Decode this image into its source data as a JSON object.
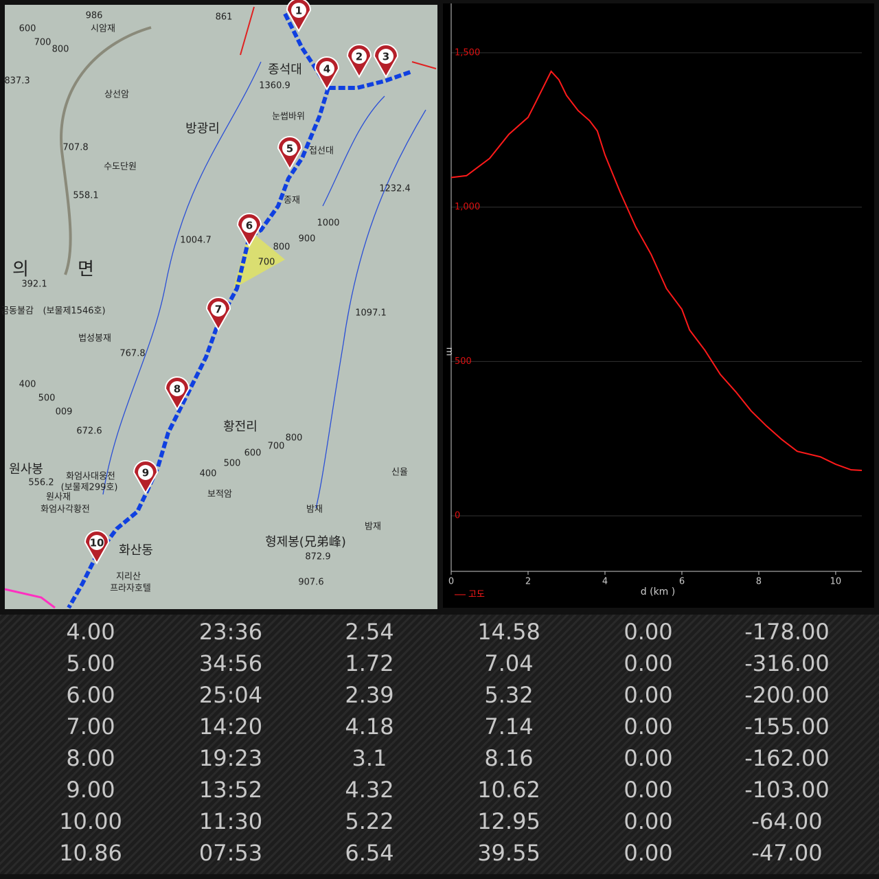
{
  "map": {
    "markers": [
      "1",
      "2",
      "3",
      "4",
      "5",
      "6",
      "7",
      "8",
      "9",
      "10"
    ],
    "labels": [
      "986",
      "시암재",
      "861",
      "600",
      "700",
      "800",
      "837.3",
      "상선암",
      "종석대",
      "1360.9",
      "방광리",
      "눈썹바위",
      "접선대",
      "707.8",
      "수도단원",
      "558.1",
      "1232.4",
      "종재",
      "1000",
      "900",
      "1004.7",
      "800",
      "700",
      "의",
      "면",
      "392.1",
      "금동불감",
      "(보물제1546호)",
      "1097.1",
      "법성봉재",
      "767.8",
      "400",
      "500",
      "009",
      "672.6",
      "황전리",
      "800",
      "700",
      "600",
      "500",
      "원사봉",
      "400",
      "신율",
      "화엄사대웅전",
      "556.2",
      "(보물제299호)",
      "원사재",
      "보적암",
      "화엄사각황전",
      "밤재",
      "밤재",
      "형제봉(兄弟峰)",
      "화산동",
      "872.9",
      "지리산",
      "프라자호텔",
      "907.6"
    ]
  },
  "chart_data": {
    "type": "line",
    "y_label": "m",
    "x_label": "d (km )",
    "x": [
      0,
      0.4,
      1,
      1.5,
      2,
      2.2,
      2.6,
      2.8,
      3,
      3.3,
      3.6,
      3.8,
      4,
      4.4,
      4.8,
      5.2,
      5.6,
      6,
      6.2,
      6.6,
      7,
      7.4,
      7.8,
      8.2,
      8.6,
      9,
      9.6,
      10,
      10.4,
      10.68
    ],
    "series": [
      {
        "name": "고도",
        "color": "#ff1a1a",
        "values": [
          1096,
          1102,
          1158,
          1236,
          1291,
          1340,
          1440,
          1413,
          1362,
          1313,
          1280,
          1247,
          1169,
          1047,
          936,
          847,
          736,
          669,
          602,
          536,
          458,
          402,
          340,
          291,
          247,
          209,
          191,
          167,
          149,
          147
        ]
      }
    ],
    "xlim": [
      0,
      10.68
    ],
    "ylim": [
      -180,
      1660
    ],
    "xticks": [
      0,
      2,
      4,
      6,
      8,
      10
    ],
    "yticks": [
      0,
      500,
      {
        "value": 1000,
        "label": "1,000"
      },
      {
        "value": 1500,
        "label": "1,500"
      }
    ],
    "grid": true
  },
  "table": {
    "rows": [
      [
        "4.00",
        "23:36",
        "2.54",
        "14.58",
        "0.00",
        "-178.00"
      ],
      [
        "5.00",
        "34:56",
        "1.72",
        "7.04",
        "0.00",
        "-316.00"
      ],
      [
        "6.00",
        "25:04",
        "2.39",
        "5.32",
        "0.00",
        "-200.00"
      ],
      [
        "7.00",
        "14:20",
        "4.18",
        "7.14",
        "0.00",
        "-155.00"
      ],
      [
        "8.00",
        "19:23",
        "3.1",
        "8.16",
        "0.00",
        "-162.00"
      ],
      [
        "9.00",
        "13:52",
        "4.32",
        "10.62",
        "0.00",
        "-103.00"
      ],
      [
        "10.00",
        "11:30",
        "5.22",
        "12.95",
        "0.00",
        "-64.00"
      ],
      [
        "10.86",
        "07:53",
        "6.54",
        "39.55",
        "0.00",
        "-47.00"
      ]
    ]
  }
}
